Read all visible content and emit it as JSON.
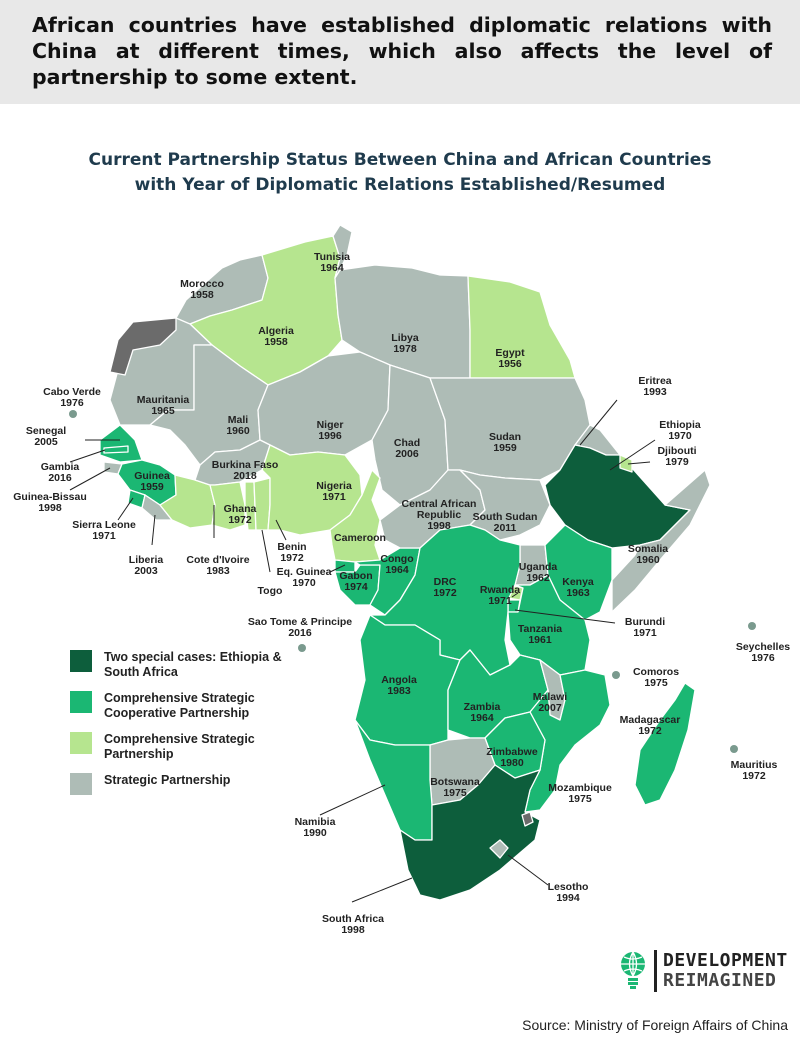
{
  "header": {
    "text": "African countries have established diplomatic relations with China at different times, which also affects the level of partnership to some extent."
  },
  "subtitle": {
    "line1": "Current Partnership Status Between China and African Countries",
    "line2": "with Year of Diplomatic Relations Established/Resumed"
  },
  "colors": {
    "special": "#0d5e3c",
    "comprehensive_strategic_cooperative": "#1bb773",
    "comprehensive_strategic": "#b6e58f",
    "strategic": "#aebcb6",
    "none": "#6b6b6b",
    "border": "#ffffff"
  },
  "legend": [
    {
      "category": "special",
      "label": "Two special cases: Ethiopia & South Africa"
    },
    {
      "category": "comprehensive_strategic_cooperative",
      "label": "Comprehensive Strategic Cooperative Partnership"
    },
    {
      "category": "comprehensive_strategic",
      "label": "Comprehensive Strategic Partnership"
    },
    {
      "category": "strategic",
      "label": "Strategic Partnership"
    }
  ],
  "countries": [
    {
      "name": "Morocco",
      "year": "1958",
      "category": "strategic"
    },
    {
      "name": "Algeria",
      "year": "1958",
      "category": "comprehensive_strategic"
    },
    {
      "name": "Tunisia",
      "year": "1964",
      "category": "strategic"
    },
    {
      "name": "Libya",
      "year": "1978",
      "category": "strategic"
    },
    {
      "name": "Egypt",
      "year": "1956",
      "category": "comprehensive_strategic"
    },
    {
      "name": "Cabo Verde",
      "year": "1976",
      "category": "strategic"
    },
    {
      "name": "Mauritania",
      "year": "1965",
      "category": "strategic"
    },
    {
      "name": "Mali",
      "year": "1960",
      "category": "strategic"
    },
    {
      "name": "Niger",
      "year": "1996",
      "category": "strategic"
    },
    {
      "name": "Chad",
      "year": "2006",
      "category": "strategic"
    },
    {
      "name": "Sudan",
      "year": "1959",
      "category": "strategic"
    },
    {
      "name": "Eritrea",
      "year": "1993",
      "category": "strategic"
    },
    {
      "name": "Ethiopia",
      "year": "1970",
      "category": "special"
    },
    {
      "name": "Djibouti",
      "year": "1979",
      "category": "comprehensive_strategic"
    },
    {
      "name": "Senegal",
      "year": "2005",
      "category": "comprehensive_strategic_cooperative"
    },
    {
      "name": "Gambia",
      "year": "2016",
      "category": "comprehensive_strategic_cooperative"
    },
    {
      "name": "Guinea-Bissau",
      "year": "1998",
      "category": "strategic"
    },
    {
      "name": "Guinea",
      "year": "1959",
      "category": "comprehensive_strategic_cooperative"
    },
    {
      "name": "Sierra Leone",
      "year": "1971",
      "category": "comprehensive_strategic_cooperative"
    },
    {
      "name": "Liberia",
      "year": "2003",
      "category": "strategic"
    },
    {
      "name": "Cote d'Ivoire",
      "year": "1983",
      "category": "comprehensive_strategic"
    },
    {
      "name": "Burkina Faso",
      "year": "2018",
      "category": "strategic"
    },
    {
      "name": "Ghana",
      "year": "1972",
      "category": "comprehensive_strategic"
    },
    {
      "name": "Togo",
      "year": "",
      "category": "comprehensive_strategic"
    },
    {
      "name": "Benin",
      "year": "1972",
      "category": "comprehensive_strategic"
    },
    {
      "name": "Nigeria",
      "year": "1971",
      "category": "comprehensive_strategic"
    },
    {
      "name": "Cameroon",
      "year": "",
      "category": "comprehensive_strategic"
    },
    {
      "name": "Eq. Guinea",
      "year": "1970",
      "category": "comprehensive_strategic_cooperative"
    },
    {
      "name": "Gabon",
      "year": "1974",
      "category": "comprehensive_strategic_cooperative"
    },
    {
      "name": "Congo",
      "year": "1964",
      "category": "comprehensive_strategic_cooperative"
    },
    {
      "name": "Central African Republic",
      "year": "1998",
      "category": "strategic"
    },
    {
      "name": "South Sudan",
      "year": "2011",
      "category": "strategic"
    },
    {
      "name": "Somalia",
      "year": "1960",
      "category": "strategic"
    },
    {
      "name": "Uganda",
      "year": "1962",
      "category": "strategic"
    },
    {
      "name": "Kenya",
      "year": "1963",
      "category": "comprehensive_strategic_cooperative"
    },
    {
      "name": "Rwanda",
      "year": "1971",
      "category": "comprehensive_strategic"
    },
    {
      "name": "Burundi",
      "year": "1971",
      "category": "comprehensive_strategic_cooperative"
    },
    {
      "name": "DRC",
      "year": "1972",
      "category": "comprehensive_strategic_cooperative"
    },
    {
      "name": "Tanzania",
      "year": "1961",
      "category": "comprehensive_strategic_cooperative"
    },
    {
      "name": "Sao Tome & Principe",
      "year": "2016",
      "category": "strategic"
    },
    {
      "name": "Angola",
      "year": "1983",
      "category": "comprehensive_strategic_cooperative"
    },
    {
      "name": "Zambia",
      "year": "1964",
      "category": "comprehensive_strategic_cooperative"
    },
    {
      "name": "Malawi",
      "year": "2007",
      "category": "strategic"
    },
    {
      "name": "Mozambique",
      "year": "1975",
      "category": "comprehensive_strategic_cooperative"
    },
    {
      "name": "Zimbabwe",
      "year": "1980",
      "category": "comprehensive_strategic_cooperative"
    },
    {
      "name": "Botswana",
      "year": "1975",
      "category": "strategic"
    },
    {
      "name": "Namibia",
      "year": "1990",
      "category": "comprehensive_strategic_cooperative"
    },
    {
      "name": "South Africa",
      "year": "1998",
      "category": "special"
    },
    {
      "name": "Lesotho",
      "year": "1994",
      "category": "strategic"
    },
    {
      "name": "Madagascar",
      "year": "1972",
      "category": "comprehensive_strategic_cooperative"
    },
    {
      "name": "Seychelles",
      "year": "1976",
      "category": "strategic"
    },
    {
      "name": "Comoros",
      "year": "1975",
      "category": "strategic"
    },
    {
      "name": "Mauritius",
      "year": "1972",
      "category": "strategic"
    }
  ],
  "logo": {
    "line1": "DEVELOPMENT",
    "line2": "REIMAGINED"
  },
  "source": "Source: Ministry of Foreign Affairs of China"
}
